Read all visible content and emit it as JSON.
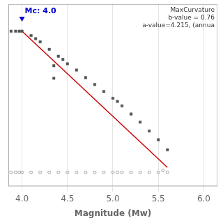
{
  "chart_data": {
    "type": "scatter",
    "xlabel": "Magnitude (Mw)",
    "xlim": [
      3.85,
      6.15
    ],
    "ylim": [
      -0.3,
      2.6
    ],
    "xticks": [
      {
        "value": 4,
        "label": "4.0"
      },
      4.5,
      {
        "value": 5,
        "label": "5.0"
      },
      5.5,
      {
        "value": 6,
        "label": "6.0"
      }
    ],
    "grid": true,
    "tick_labels": "x",
    "annotations": [
      "MaxCurvature",
      "b-value = 0.76",
      "a-value=4.215, (annua"
    ],
    "mc_marker": {
      "x": 4.0,
      "label": "Mc: 4.0",
      "color": "#0000cc",
      "marker": "triangle-down"
    },
    "series": [
      {
        "type": "line",
        "color": "#cc0000",
        "x": [
          4.0,
          5.6
        ],
        "values": [
          2.17,
          0.0
        ]
      },
      {
        "type": "scatter",
        "marker": "square",
        "color": "#555555",
        "x": [
          4.0,
          4.1,
          4.15,
          4.2,
          4.3,
          4.4,
          4.45,
          4.5,
          4.6,
          4.7,
          4.8,
          4.9,
          5.0,
          5.05,
          5.1,
          5.2,
          5.3,
          5.4,
          5.5,
          5.6
        ],
        "values": [
          2.17,
          2.1,
          2.05,
          2.0,
          1.88,
          1.77,
          1.72,
          1.65,
          1.55,
          1.43,
          1.32,
          1.21,
          1.1,
          1.05,
          0.98,
          0.85,
          0.72,
          0.58,
          0.44,
          0.28
        ]
      },
      {
        "type": "scatter",
        "marker": "square",
        "color": "#555555",
        "x": [
          3.88,
          3.93,
          3.97,
          4.35,
          4.35
        ],
        "values": [
          2.17,
          2.17,
          2.17,
          1.62,
          1.42
        ]
      },
      {
        "type": "scatter",
        "marker": "circle-open",
        "color": "#888888",
        "x": [
          3.88,
          3.93,
          3.97,
          4.0,
          4.1,
          4.2,
          4.3,
          4.4,
          4.5,
          4.6,
          4.7,
          4.8,
          4.9,
          5.0,
          5.05,
          5.1,
          5.2,
          5.3,
          5.4,
          5.5,
          5.55,
          5.6
        ],
        "values": [
          -0.08,
          -0.08,
          -0.08,
          -0.08,
          -0.08,
          -0.08,
          -0.08,
          -0.08,
          -0.08,
          -0.08,
          -0.08,
          -0.08,
          -0.08,
          -0.08,
          -0.08,
          -0.08,
          -0.08,
          -0.08,
          -0.08,
          -0.08,
          -0.05,
          -0.08
        ]
      }
    ]
  }
}
